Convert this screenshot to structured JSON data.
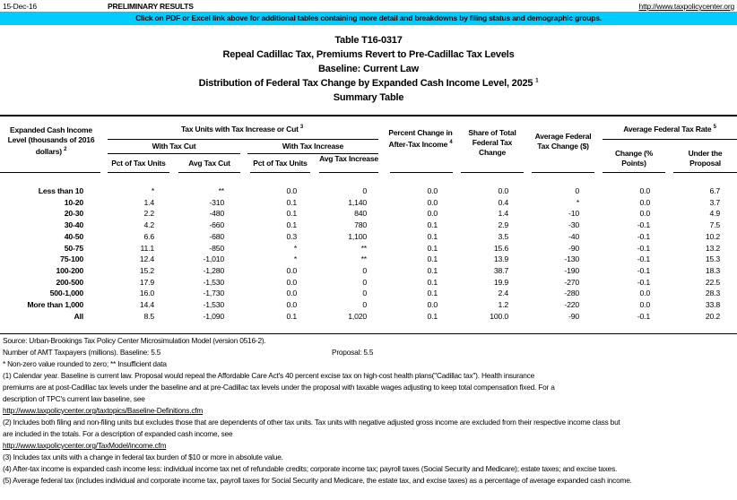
{
  "top": {
    "date": "15-Dec-16",
    "status": "PRELIMINARY RESULTS",
    "url": "http://www.taxpolicycenter.org",
    "banner": "Click on PDF or Excel link above for additional tables containing more detail and breakdowns by filing status and demographic groups."
  },
  "titles": {
    "table_id": "Table T16-0317",
    "title": "Repeal Cadillac Tax, Premiums Revert to Pre-Cadillac Tax Levels",
    "baseline": "Baseline: Current Law",
    "subtitle": "Distribution of Federal Tax Change by Expanded Cash Income Level, 2025",
    "subtitle_note": "1",
    "summary": "Summary Table"
  },
  "headers": {
    "income_level": "Expanded Cash Income Level (thousands of 2016 dollars)",
    "income_level_note": "2",
    "tax_units_group": "Tax Units with Tax Increase or Cut",
    "tax_units_group_note": "3",
    "with_cut": "With Tax Cut",
    "with_increase": "With Tax Increase",
    "pct_units_cut": "Pct of Tax Units",
    "avg_tax_cut": "Avg Tax Cut",
    "pct_units_increase": "Pct of Tax Units",
    "avg_tax_increase": "Avg Tax Increase",
    "pct_change_after_tax": "Percent Change in After-Tax Income",
    "pct_change_after_tax_note": "4",
    "share_total": "Share of Total Federal Tax Change",
    "avg_fed_change": "Average Federal Tax Change ($)",
    "avg_rate_group": "Average Federal Tax Rate",
    "avg_rate_group_note": "5",
    "rate_change": "Change (% Points)",
    "rate_under_proposal": "Under the Proposal"
  },
  "rows": [
    [
      "Less than 10",
      "*",
      "**",
      "0.0",
      "0",
      "0.0",
      "0.0",
      "0",
      "0.0",
      "6.7"
    ],
    [
      "10-20",
      "1.4",
      "-310",
      "0.1",
      "1,140",
      "0.0",
      "0.4",
      "*",
      "0.0",
      "3.7"
    ],
    [
      "20-30",
      "2.2",
      "-480",
      "0.1",
      "840",
      "0.0",
      "1.4",
      "-10",
      "0.0",
      "4.9"
    ],
    [
      "30-40",
      "4.2",
      "-660",
      "0.1",
      "780",
      "0.1",
      "2.9",
      "-30",
      "-0.1",
      "7.5"
    ],
    [
      "40-50",
      "6.6",
      "-680",
      "0.3",
      "1,100",
      "0.1",
      "3.5",
      "-40",
      "-0.1",
      "10.2"
    ],
    [
      "50-75",
      "11.1",
      "-850",
      "*",
      "**",
      "0.1",
      "15.6",
      "-90",
      "-0.1",
      "13.2"
    ],
    [
      "75-100",
      "12.4",
      "-1,010",
      "*",
      "**",
      "0.1",
      "13.9",
      "-130",
      "-0.1",
      "15.3"
    ],
    [
      "100-200",
      "15.2",
      "-1,280",
      "0.0",
      "0",
      "0.1",
      "38.7",
      "-190",
      "-0.1",
      "18.3"
    ],
    [
      "200-500",
      "17.9",
      "-1,530",
      "0.0",
      "0",
      "0.1",
      "19.9",
      "-270",
      "-0.1",
      "22.5"
    ],
    [
      "500-1,000",
      "16.0",
      "-1,730",
      "0.0",
      "0",
      "0.1",
      "2.4",
      "-280",
      "0.0",
      "28.3"
    ],
    [
      "More than 1,000",
      "14.4",
      "-1,530",
      "0.0",
      "0",
      "0.0",
      "1.2",
      "-220",
      "0.0",
      "33.8"
    ],
    [
      "All",
      "8.5",
      "-1,090",
      "0.1",
      "1,020",
      "0.1",
      "100.0",
      "-90",
      "-0.1",
      "20.2"
    ]
  ],
  "notes": {
    "source": "Source: Urban-Brookings Tax Policy Center Microsimulation Model (version 0516-2).",
    "amt_label": "Number of AMT Taxpayers (millions).  Baseline: 5.5",
    "amt_proposal": "Proposal: 5.5",
    "legend": "* Non-zero value rounded to zero; ** Insufficient data",
    "n1a": "(1) Calendar year. Baseline is current law. Proposal would repeal the Affordable Care Act's 40 percent excise tax on high-cost health plans(\"Cadillac tax\"). Health insurance",
    "n1b": "premiums are at post-Cadillac tax levels under the baseline and at pre-Cadillac tax levels under the proposal with taxable wages adjusting to keep total compensation fixed.  For a",
    "n1c": "description of TPC's current law baseline, see",
    "n1link": "http://www.taxpolicycenter.org/taxtopics/Baseline-Definitions.cfm",
    "n2a": "(2) Includes both filing and non-filing units but excludes those that are dependents of other tax units. Tax units with negative adjusted gross income are excluded from their respective income class but",
    "n2b": "are included in the totals. For a description of expanded cash income, see",
    "n2link": "http://www.taxpolicycenter.org/TaxModel/income.cfm",
    "n3": "(3) Includes tax units with a change in federal tax burden of $10 or more in absolute value.",
    "n4": "(4) After-tax income is expanded cash income less: individual income tax net of refundable credits; corporate income tax; payroll taxes (Social Security and Medicare); estate taxes; and excise taxes.",
    "n5": "(5) Average federal tax (includes individual and corporate income tax, payroll taxes for Social Security and Medicare, the estate tax, and excise taxes) as a percentage of average expanded cash income."
  },
  "colors": {
    "banner": "#00ccff"
  }
}
